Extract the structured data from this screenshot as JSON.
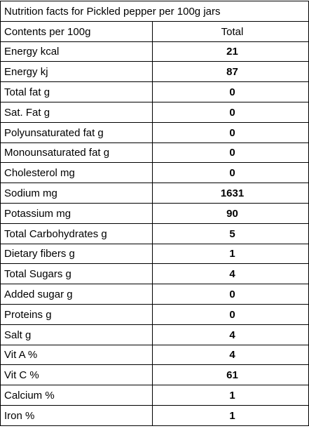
{
  "title": "Nutrition facts for Pickled pepper per 100g jars",
  "header": {
    "label": "Contents per 100g",
    "value": "Total"
  },
  "rows": [
    {
      "label": "Energy kcal",
      "value": "21"
    },
    {
      "label": "Energy kj",
      "value": "87"
    },
    {
      "label": "Total fat g",
      "value": "0"
    },
    {
      "label": "Sat. Fat g",
      "value": "0"
    },
    {
      "label": "Polyunsaturated fat g",
      "value": "0"
    },
    {
      "label": "Monounsaturated fat g",
      "value": "0"
    },
    {
      "label": "Cholesterol mg",
      "value": "0"
    },
    {
      "label": "Sodium mg",
      "value": "1631"
    },
    {
      "label": "Potassium mg",
      "value": "90"
    },
    {
      "label": "Total Carbohydrates g",
      "value": "5"
    },
    {
      "label": "Dietary fibers g",
      "value": "1"
    },
    {
      "label": "Total Sugars g",
      "value": "4"
    },
    {
      "label": "Added sugar g",
      "value": "0"
    },
    {
      "label": "Proteins g",
      "value": "0"
    },
    {
      "label": "Salt g",
      "value": "4"
    },
    {
      "label": "Vit A %",
      "value": "4"
    },
    {
      "label": "Vit C %",
      "value": "61"
    },
    {
      "label": "Calcium %",
      "value": "1"
    },
    {
      "label": "Iron %",
      "value": "1"
    }
  ]
}
